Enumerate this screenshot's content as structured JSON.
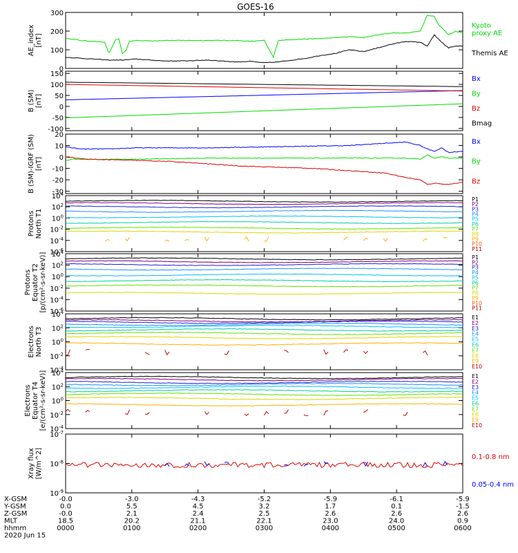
{
  "title": "GOES-16",
  "colors": {
    "black": "#000000",
    "red": "#e00000",
    "green": "#00dd00",
    "blue": "#0000ff",
    "p1": "#000000",
    "p2": "#800080",
    "p3": "#2222cc",
    "p4": "#1e90ff",
    "p5": "#00bfff",
    "p6": "#00d0a0",
    "p7": "#66e000",
    "p8": "#d8d800",
    "p9": "#ffb000",
    "p10": "#ff5000",
    "p11": "#c00000"
  },
  "chart_data": [
    {
      "type": "line",
      "ylabel": "AE_index\n[nT]",
      "ylim": [
        0,
        300
      ],
      "yticks": [
        "0",
        "100",
        "200",
        "300"
      ],
      "series": [
        {
          "name": "Kyoto\nproxy AE",
          "color": "#00dd00",
          "x": [
            0,
            10,
            20,
            40,
            55,
            60,
            62,
            70,
            75,
            80,
            85,
            90,
            100,
            120,
            140,
            160,
            180,
            200,
            220,
            240,
            260,
            280,
            290,
            293,
            296,
            300,
            320,
            340,
            360,
            380,
            400,
            420,
            440,
            460,
            480,
            500,
            505,
            510,
            520,
            525,
            530,
            540,
            550,
            560
          ],
          "values": [
            160,
            158,
            150,
            145,
            140,
            90,
            85,
            150,
            160,
            80,
            95,
            145,
            150,
            148,
            150,
            150,
            150,
            150,
            150,
            150,
            145,
            150,
            80,
            60,
            100,
            150,
            155,
            158,
            160,
            165,
            170,
            165,
            180,
            190,
            190,
            200,
            240,
            285,
            280,
            240,
            220,
            180,
            200,
            190
          ]
        },
        {
          "name": "Themis AE",
          "color": "#000000",
          "x": [
            0,
            20,
            40,
            60,
            80,
            100,
            120,
            140,
            160,
            180,
            200,
            220,
            240,
            260,
            280,
            300,
            320,
            340,
            360,
            380,
            400,
            420,
            440,
            460,
            480,
            500,
            510,
            520,
            530,
            540,
            550,
            560
          ],
          "values": [
            60,
            55,
            50,
            45,
            45,
            50,
            45,
            40,
            40,
            42,
            45,
            40,
            35,
            38,
            30,
            35,
            45,
            55,
            70,
            80,
            100,
            90,
            110,
            130,
            145,
            140,
            120,
            180,
            140,
            110,
            120,
            120
          ]
        }
      ]
    },
    {
      "type": "line",
      "ylabel": "B (SM)\n[nT]",
      "ylim": [
        -110,
        160
      ],
      "yticks": [
        "-100",
        "-50",
        "0",
        "50",
        "100",
        "150"
      ],
      "series": [
        {
          "name": "Bx",
          "color": "#0000ff",
          "x": [
            0,
            560
          ],
          "values": [
            30,
            72
          ]
        },
        {
          "name": "By",
          "color": "#00dd00",
          "x": [
            0,
            560
          ],
          "values": [
            -52,
            12
          ]
        },
        {
          "name": "Bz",
          "color": "#e00000",
          "x": [
            0,
            560
          ],
          "values": [
            100,
            70
          ]
        },
        {
          "name": "Bmag",
          "color": "#000000",
          "x": [
            0,
            560
          ],
          "values": [
            110,
            90
          ]
        }
      ]
    },
    {
      "type": "line",
      "ylabel": "B (SM)-IGRF (SM)\n[nT]",
      "ylim": [
        -32,
        20
      ],
      "yticks": [
        "-30",
        "-20",
        "-10",
        "0",
        "10",
        "20"
      ],
      "series": [
        {
          "name": "Bx",
          "color": "#0000ff",
          "x": [
            0,
            20,
            60,
            100,
            200,
            300,
            400,
            450,
            480,
            500,
            510,
            520,
            530,
            540,
            560
          ],
          "values": [
            9,
            7,
            7,
            8,
            8,
            9,
            10,
            12,
            13,
            10,
            7,
            5,
            8,
            4,
            5
          ]
        },
        {
          "name": "By",
          "color": "#00dd00",
          "x": [
            0,
            10,
            60,
            100,
            200,
            300,
            400,
            480,
            500,
            510,
            520,
            530,
            540,
            560
          ],
          "values": [
            -3,
            -2,
            -2,
            -2,
            -1,
            -1,
            -1,
            -1,
            -2,
            2,
            -1,
            0,
            -1,
            -1
          ]
        },
        {
          "name": "Bz",
          "color": "#e00000",
          "x": [
            0,
            30,
            100,
            150,
            200,
            250,
            300,
            350,
            400,
            450,
            480,
            500,
            510,
            520,
            540,
            560
          ],
          "values": [
            0,
            -2,
            -3,
            -4,
            -6,
            -8,
            -9,
            -10,
            -12,
            -14,
            -18,
            -20,
            -24,
            -23,
            -24,
            -22
          ]
        }
      ]
    },
    {
      "type": "line",
      "ylabel": "Protons\nNorth T1",
      "log": true,
      "ylim": [
        -6,
        4
      ],
      "yticks": [
        "10^4",
        "10^2",
        "10^0",
        "10^-2",
        "10^-4",
        "10^-6"
      ],
      "series": [
        {
          "name": "P1",
          "color": "#000000",
          "values": [
            3.0
          ]
        },
        {
          "name": "P2",
          "color": "#800080",
          "values": [
            2.6
          ]
        },
        {
          "name": "P3",
          "color": "#2222cc",
          "values": [
            2.0
          ]
        },
        {
          "name": "P4",
          "color": "#1e90ff",
          "values": [
            1.2
          ]
        },
        {
          "name": "P5",
          "color": "#00bfff",
          "values": [
            0.2
          ]
        },
        {
          "name": "P6",
          "color": "#00d0a0",
          "values": [
            -0.8
          ]
        },
        {
          "name": "P7",
          "color": "#66e000",
          "values": [
            -1.8
          ]
        },
        {
          "name": "P8",
          "color": "#d8d800",
          "values": [
            -2.5
          ]
        },
        {
          "name": "P9",
          "color": "#ffb000",
          "values": [
            -3.8
          ]
        },
        {
          "name": "P10",
          "color": "#ff5000",
          "values": []
        },
        {
          "name": "P11",
          "color": "#c00000",
          "values": []
        }
      ]
    },
    {
      "type": "line",
      "ylabel": "Protons\nEquator T2\n[p/(cm²-s-sr-keV)]",
      "log": true,
      "ylim": [
        -6,
        4
      ],
      "yticks": [
        "10^4",
        "10^2",
        "10^0",
        "10^-2",
        "10^-4",
        "10^-6"
      ],
      "series": [
        {
          "name": "P1",
          "color": "#000000",
          "values": [
            3.1
          ]
        },
        {
          "name": "P2",
          "color": "#800080",
          "values": [
            2.6
          ]
        },
        {
          "name": "P3",
          "color": "#2222cc",
          "values": [
            2.1
          ]
        },
        {
          "name": "P4",
          "color": "#1e90ff",
          "values": [
            1.3
          ]
        },
        {
          "name": "P5",
          "color": "#00bfff",
          "values": [
            0.3
          ]
        },
        {
          "name": "P6",
          "color": "#00d0a0",
          "values": [
            -0.7
          ]
        },
        {
          "name": "P7",
          "color": "#66e000",
          "values": [
            -1.6
          ]
        },
        {
          "name": "P8",
          "color": "#d8d800",
          "values": [
            -2.9
          ]
        },
        {
          "name": "P9",
          "color": "#ffb000",
          "values": []
        },
        {
          "name": "P10",
          "color": "#ff5000",
          "values": []
        },
        {
          "name": "P11",
          "color": "#c00000",
          "values": []
        }
      ]
    },
    {
      "type": "line",
      "ylabel": "Electrons\nNorth T3",
      "log": true,
      "ylim": [
        -4,
        4
      ],
      "yticks": [
        "10^4",
        "10^2",
        "10^0",
        "10^-2",
        "10^-4"
      ],
      "series": [
        {
          "name": "E1",
          "color": "#000000",
          "values": [
            3.3
          ]
        },
        {
          "name": "E2",
          "color": "#800080",
          "values": [
            3.0
          ]
        },
        {
          "name": "E3",
          "color": "#2222cc",
          "values": [
            2.8
          ]
        },
        {
          "name": "E4",
          "color": "#1e90ff",
          "values": [
            2.5
          ]
        },
        {
          "name": "E5",
          "color": "#00bfff",
          "values": [
            2.2
          ]
        },
        {
          "name": "E6",
          "color": "#00d0a0",
          "values": [
            1.7
          ]
        },
        {
          "name": "E7",
          "color": "#66e000",
          "values": [
            1.2
          ]
        },
        {
          "name": "E8",
          "color": "#d8d800",
          "values": [
            0.6
          ]
        },
        {
          "name": "E9",
          "color": "#ffb000",
          "values": [
            -0.3
          ]
        },
        {
          "name": "E10",
          "color": "#c00000",
          "values": [
            -1.5
          ]
        }
      ]
    },
    {
      "type": "line",
      "ylabel": "Electrons\nEquator T4\n[e/(cm²-s-sr-keV)]",
      "log": true,
      "ylim": [
        -4,
        4
      ],
      "yticks": [
        "10^4",
        "10^2",
        "10^0",
        "10^-2",
        "10^-4"
      ],
      "series": [
        {
          "name": "E1",
          "color": "#000000",
          "values": [
            3.3
          ]
        },
        {
          "name": "E2",
          "color": "#800080",
          "values": [
            3.0
          ]
        },
        {
          "name": "E3",
          "color": "#2222cc",
          "values": [
            2.6
          ]
        },
        {
          "name": "E4",
          "color": "#1e90ff",
          "values": [
            2.3
          ]
        },
        {
          "name": "E5",
          "color": "#00bfff",
          "values": [
            1.9
          ]
        },
        {
          "name": "E6",
          "color": "#00d0a0",
          "values": [
            1.4
          ]
        },
        {
          "name": "E7",
          "color": "#66e000",
          "values": [
            0.9
          ]
        },
        {
          "name": "E8",
          "color": "#d8d800",
          "values": [
            0.3
          ]
        },
        {
          "name": "E9",
          "color": "#ffb000",
          "values": [
            -0.6
          ]
        },
        {
          "name": "E10",
          "color": "#c00000",
          "values": [
            -1.7
          ]
        }
      ]
    },
    {
      "type": "line",
      "ylabel": "Xray flux\n[W/m^2]",
      "log": true,
      "ylim": [
        -9,
        -7
      ],
      "yticks": [
        "10^-7",
        "10^-8",
        "10^-9"
      ],
      "series": [
        {
          "name": "0.1-0.8 nm",
          "color": "#e00000",
          "values": [
            -8.05
          ]
        },
        {
          "name": "0.05-0.4 nm",
          "color": "#0000ff",
          "values": [
            -8.02
          ]
        }
      ]
    }
  ],
  "xaxis": {
    "row_labels": [
      "X-GSM",
      "Y-GSM",
      "Z-GSM",
      "MLT",
      "hhmm"
    ],
    "date": "2020 Jun 15",
    "ticks": [
      {
        "x": 0,
        "x_gsm": "-0.0",
        "y_gsm": "0.0",
        "z_gsm": "-0.0",
        "mlt": "18.5",
        "hhmm": "0000"
      },
      {
        "x": 60,
        "x_gsm": "-3.0",
        "y_gsm": "5.5",
        "z_gsm": "2.1",
        "mlt": "20.2",
        "hhmm": "0100"
      },
      {
        "x": 120,
        "x_gsm": "-4.3",
        "y_gsm": "4.5",
        "z_gsm": "2.4",
        "mlt": "21.1",
        "hhmm": "0200"
      },
      {
        "x": 180,
        "x_gsm": "-5.2",
        "y_gsm": "3.2",
        "z_gsm": "2.5",
        "mlt": "22.1",
        "hhmm": "0300"
      },
      {
        "x": 240,
        "x_gsm": "-5.9",
        "y_gsm": "1.7",
        "z_gsm": "2.6",
        "mlt": "23.0",
        "hhmm": "0400"
      },
      {
        "x": 300,
        "x_gsm": "-6.1",
        "y_gsm": "0.1",
        "z_gsm": "2.6",
        "mlt": "24.0",
        "hhmm": "0500"
      },
      {
        "x": 360,
        "x_gsm": "-5.9",
        "y_gsm": "-1.5",
        "z_gsm": "2.6",
        "mlt": "0.9",
        "hhmm": "0600"
      }
    ]
  }
}
